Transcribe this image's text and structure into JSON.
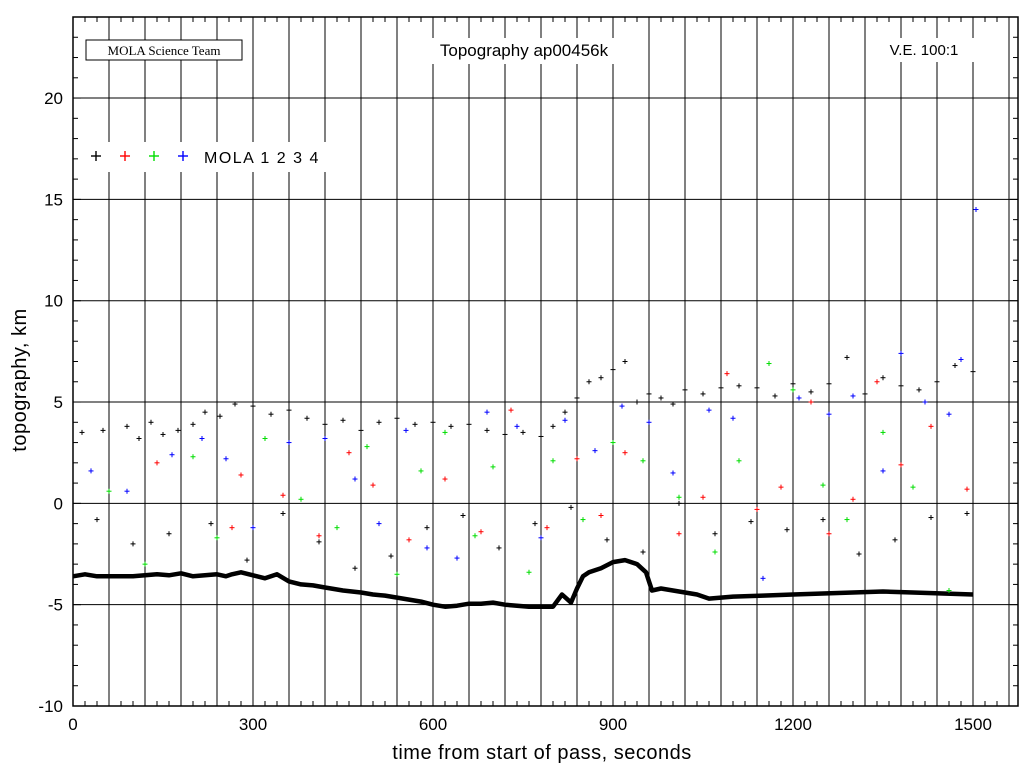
{
  "header": {
    "team_label": "MOLA Science Team",
    "title": "Topography ap00456k",
    "vertical_exaggeration": "V.E. 100:1"
  },
  "legend": {
    "label": "MOLA 1 2 3 4",
    "colors": [
      "#000000",
      "#ff0000",
      "#00dd00",
      "#0000ff"
    ]
  },
  "chart_data": {
    "type": "scatter",
    "title": "Topography ap00456k",
    "xlabel": "time from start of pass, seconds",
    "ylabel": "topography, km",
    "xlim": [
      0,
      1575
    ],
    "ylim": [
      -10,
      24
    ],
    "x_ticks_labeled": [
      0,
      300,
      600,
      900,
      1200,
      1500
    ],
    "y_ticks_labeled": [
      -10,
      -5,
      0,
      5,
      10,
      15,
      20
    ],
    "grid": true,
    "legend_position": "top-left",
    "surface_profile": {
      "name": "MOLA 1",
      "color": "#000000",
      "x": [
        0,
        20,
        40,
        60,
        80,
        100,
        120,
        140,
        160,
        180,
        200,
        220,
        240,
        255,
        265,
        280,
        300,
        320,
        340,
        360,
        380,
        400,
        420,
        450,
        480,
        500,
        520,
        540,
        560,
        580,
        600,
        620,
        640,
        660,
        680,
        700,
        720,
        740,
        760,
        780,
        800,
        815,
        830,
        840,
        850,
        860,
        880,
        900,
        920,
        940,
        955,
        965,
        980,
        1000,
        1020,
        1040,
        1060,
        1080,
        1100,
        1150,
        1200,
        1250,
        1300,
        1350,
        1400,
        1450,
        1500
      ],
      "y": [
        -3.6,
        -3.5,
        -3.6,
        -3.6,
        -3.6,
        -3.6,
        -3.55,
        -3.5,
        -3.55,
        -3.45,
        -3.6,
        -3.55,
        -3.5,
        -3.6,
        -3.5,
        -3.4,
        -3.55,
        -3.7,
        -3.5,
        -3.85,
        -4.0,
        -4.05,
        -4.15,
        -4.3,
        -4.4,
        -4.5,
        -4.55,
        -4.65,
        -4.75,
        -4.85,
        -5.0,
        -5.1,
        -5.05,
        -4.95,
        -4.95,
        -4.9,
        -5.0,
        -5.05,
        -5.1,
        -5.1,
        -5.1,
        -4.5,
        -4.9,
        -4.2,
        -3.6,
        -3.4,
        -3.2,
        -2.9,
        -2.8,
        -3.0,
        -3.4,
        -4.3,
        -4.2,
        -4.3,
        -4.4,
        -4.5,
        -4.7,
        -4.65,
        -4.6,
        -4.55,
        -4.5,
        -4.45,
        -4.4,
        -4.35,
        -4.4,
        -4.45,
        -4.5
      ]
    },
    "series": [
      {
        "name": "MOLA 1",
        "color": "#000000",
        "x": [
          15,
          50,
          90,
          110,
          130,
          150,
          175,
          200,
          220,
          245,
          270,
          300,
          330,
          360,
          390,
          420,
          450,
          480,
          510,
          540,
          570,
          600,
          630,
          660,
          690,
          720,
          750,
          780,
          800,
          820,
          840,
          860,
          880,
          900,
          920,
          940,
          960,
          980,
          1000,
          1020,
          1050,
          1080,
          1110,
          1140,
          1170,
          1200,
          1230,
          1260,
          1290,
          1320,
          1350,
          1380,
          1410,
          1440,
          1470,
          1500,
          40,
          100,
          160,
          230,
          290,
          350,
          410,
          470,
          530,
          590,
          650,
          710,
          770,
          830,
          890,
          950,
          1010,
          1070,
          1130,
          1190,
          1250,
          1310,
          1370,
          1430,
          1490
        ],
        "y": [
          3.5,
          3.6,
          3.8,
          3.2,
          4.0,
          3.4,
          3.6,
          3.9,
          4.5,
          4.3,
          4.9,
          4.8,
          4.4,
          4.6,
          4.2,
          3.9,
          4.1,
          3.6,
          4.0,
          4.2,
          3.9,
          4.0,
          3.8,
          3.9,
          3.6,
          3.4,
          3.5,
          3.3,
          3.8,
          4.5,
          5.2,
          6.0,
          6.2,
          6.6,
          7.0,
          5.0,
          5.4,
          5.2,
          4.9,
          5.6,
          5.4,
          5.7,
          5.8,
          5.7,
          5.3,
          5.9,
          5.5,
          5.9,
          7.2,
          5.4,
          6.2,
          5.8,
          5.6,
          6.0,
          6.8,
          6.5,
          -0.8,
          -2.0,
          -1.5,
          -1.0,
          -2.8,
          -0.5,
          -1.9,
          -3.2,
          -2.6,
          -1.2,
          -0.6,
          -2.2,
          -1.0,
          -0.2,
          -1.8,
          -2.4,
          0.0,
          -1.5,
          -0.9,
          -1.3,
          -0.8,
          -2.5,
          -1.8,
          -0.7,
          -0.5
        ]
      },
      {
        "name": "MOLA 2",
        "color": "#ff0000",
        "x": [
          140,
          265,
          280,
          350,
          410,
          460,
          500,
          560,
          620,
          680,
          730,
          790,
          840,
          880,
          920,
          1010,
          1050,
          1090,
          1140,
          1180,
          1230,
          1260,
          1300,
          1340,
          1380,
          1430,
          1490
        ],
        "y": [
          2.0,
          -1.2,
          1.4,
          0.4,
          -1.6,
          2.5,
          0.9,
          -1.8,
          1.2,
          -1.4,
          4.6,
          -1.2,
          2.2,
          -0.6,
          2.5,
          -1.5,
          0.3,
          6.4,
          -0.3,
          0.8,
          5.0,
          -1.5,
          0.2,
          6.0,
          1.9,
          3.8,
          0.7
        ]
      },
      {
        "name": "MOLA 3",
        "color": "#00dd00",
        "x": [
          60,
          120,
          200,
          240,
          320,
          380,
          440,
          490,
          540,
          580,
          620,
          670,
          700,
          760,
          800,
          850,
          900,
          950,
          1010,
          1070,
          1110,
          1160,
          1200,
          1250,
          1290,
          1350,
          1400,
          1460
        ],
        "y": [
          0.6,
          -3.0,
          2.3,
          -1.7,
          3.2,
          0.2,
          -1.2,
          2.8,
          -3.5,
          1.6,
          3.5,
          -1.6,
          1.8,
          -3.4,
          2.1,
          -0.8,
          3.0,
          2.1,
          0.3,
          -2.4,
          2.1,
          6.9,
          5.6,
          0.9,
          -0.8,
          3.5,
          0.8,
          -4.3
        ]
      },
      {
        "name": "MOLA 4",
        "color": "#0000ff",
        "x": [
          30,
          90,
          165,
          215,
          255,
          300,
          360,
          420,
          470,
          510,
          555,
          590,
          640,
          690,
          740,
          780,
          820,
          870,
          915,
          960,
          1000,
          1060,
          1100,
          1150,
          1210,
          1260,
          1300,
          1350,
          1380,
          1420,
          1460,
          1480,
          1505
        ],
        "y": [
          1.6,
          0.6,
          2.4,
          3.2,
          2.2,
          -1.2,
          3.0,
          3.2,
          1.2,
          -1.0,
          3.6,
          -2.2,
          -2.7,
          4.5,
          3.8,
          -1.7,
          4.1,
          2.6,
          4.8,
          4.0,
          1.5,
          4.6,
          4.2,
          -3.7,
          5.2,
          4.4,
          5.3,
          1.6,
          7.4,
          5.0,
          4.4,
          7.1,
          14.5
        ]
      }
    ]
  }
}
